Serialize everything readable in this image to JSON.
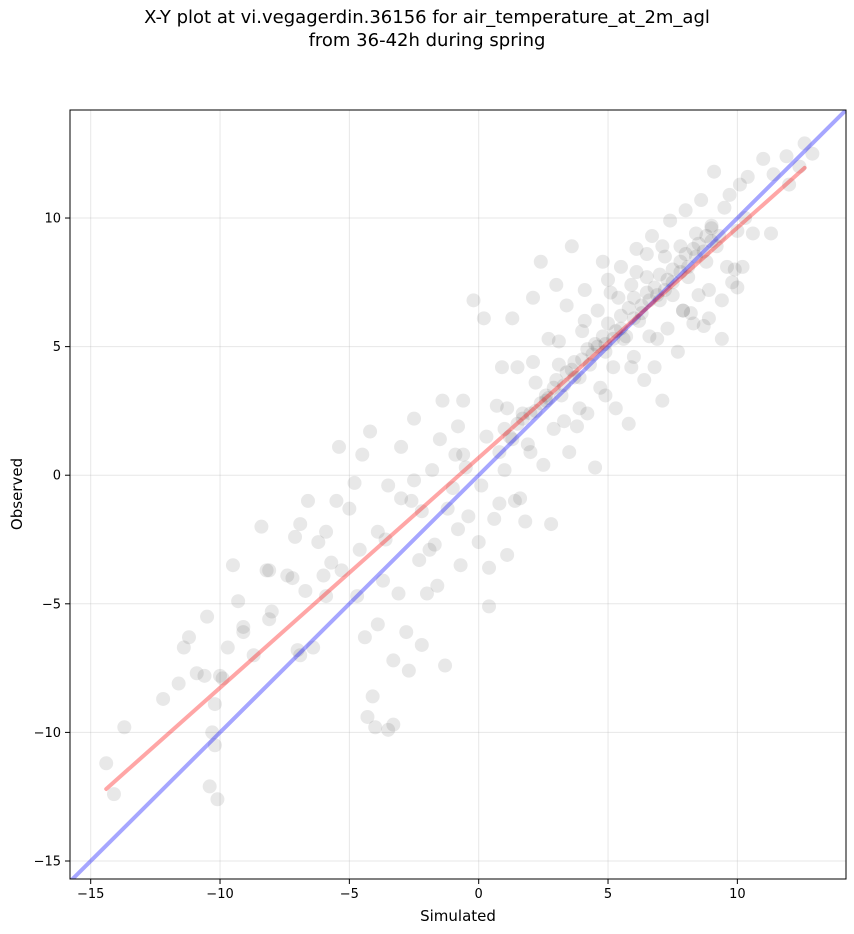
{
  "chart_data": {
    "type": "scatter",
    "title_lines": [
      "X-Y plot at vi.vegagerdin.36156 for air_temperature_at_2m_agl",
      "from 36-42h during spring"
    ],
    "xlabel": "Simulated",
    "ylabel": "Observed",
    "xlim": [
      -15.8,
      14.2
    ],
    "ylim": [
      -15.7,
      14.2
    ],
    "xticks": [
      -15,
      -10,
      -5,
      0,
      5,
      10
    ],
    "yticks": [
      -15,
      -10,
      -5,
      0,
      5,
      10
    ],
    "xtick_labels": [
      "−15",
      "−10",
      "−5",
      "0",
      "5",
      "10"
    ],
    "ytick_labels": [
      "−15",
      "−10",
      "−5",
      "0",
      "5",
      "10"
    ],
    "grid": true,
    "marker_color": "#000000",
    "marker_alpha": 0.09,
    "identity_line": {
      "x": [
        -15.8,
        14.2
      ],
      "y": [
        -15.8,
        14.2
      ],
      "color": "#0000ff"
    },
    "regression_line": {
      "x": [
        -14.4,
        12.6
      ],
      "y": [
        -12.2,
        11.95
      ],
      "color": "#ff0000"
    },
    "points": [
      [
        -14.4,
        -11.2
      ],
      [
        -14.1,
        -12.4
      ],
      [
        -13.7,
        -9.8
      ],
      [
        -12.2,
        -8.7
      ],
      [
        -11.6,
        -8.1
      ],
      [
        -11.2,
        -6.3
      ],
      [
        -11.4,
        -6.7
      ],
      [
        -10.9,
        -7.7
      ],
      [
        -10.6,
        -7.8
      ],
      [
        -10.5,
        -5.5
      ],
      [
        -10.4,
        -12.1
      ],
      [
        -10.2,
        -8.9
      ],
      [
        -10.1,
        -12.6
      ],
      [
        -10.2,
        -10.5
      ],
      [
        -10.3,
        -10.0
      ],
      [
        -9.9,
        -7.9
      ],
      [
        -10.0,
        -7.8
      ],
      [
        -9.7,
        -6.7
      ],
      [
        -9.5,
        -3.5
      ],
      [
        -9.3,
        -4.9
      ],
      [
        -9.1,
        -6.1
      ],
      [
        -9.1,
        -5.9
      ],
      [
        -8.7,
        -7.0
      ],
      [
        -8.4,
        -2.0
      ],
      [
        -8.2,
        -3.7
      ],
      [
        -8.0,
        -5.3
      ],
      [
        -8.1,
        -5.6
      ],
      [
        -7.2,
        -4.0
      ],
      [
        -7.1,
        -2.4
      ],
      [
        -6.9,
        -1.9
      ],
      [
        -7.0,
        -6.8
      ],
      [
        -6.9,
        -7.0
      ],
      [
        -6.7,
        -4.5
      ],
      [
        -6.4,
        -6.7
      ],
      [
        -6.2,
        -2.6
      ],
      [
        -6.0,
        -3.9
      ],
      [
        -5.9,
        -2.2
      ],
      [
        -5.7,
        -3.4
      ],
      [
        -5.5,
        -1.0
      ],
      [
        -5.4,
        1.1
      ],
      [
        -5.3,
        -3.7
      ],
      [
        -5.0,
        -1.3
      ],
      [
        -4.8,
        -0.3
      ],
      [
        -4.7,
        -4.7
      ],
      [
        -4.6,
        -2.9
      ],
      [
        -4.5,
        0.8
      ],
      [
        -4.4,
        -6.3
      ],
      [
        -4.3,
        -9.4
      ],
      [
        -4.1,
        -8.6
      ],
      [
        -4.0,
        -9.8
      ],
      [
        -4.2,
        1.7
      ],
      [
        -3.9,
        -5.8
      ],
      [
        -3.7,
        -4.1
      ],
      [
        -3.6,
        -2.5
      ],
      [
        -3.5,
        -0.4
      ],
      [
        -3.5,
        -9.9
      ],
      [
        -3.3,
        -9.7
      ],
      [
        -3.3,
        -7.2
      ],
      [
        -3.1,
        -4.6
      ],
      [
        -3.0,
        -0.9
      ],
      [
        -3.0,
        1.1
      ],
      [
        -2.8,
        -6.1
      ],
      [
        -2.7,
        -7.6
      ],
      [
        -2.5,
        -0.2
      ],
      [
        -2.5,
        2.2
      ],
      [
        -2.3,
        -3.3
      ],
      [
        -2.2,
        -1.4
      ],
      [
        -2.2,
        -6.6
      ],
      [
        -2.0,
        -4.6
      ],
      [
        -1.8,
        0.2
      ],
      [
        -1.7,
        -2.7
      ],
      [
        -1.6,
        -4.3
      ],
      [
        -1.5,
        1.4
      ],
      [
        -1.4,
        2.9
      ],
      [
        -1.2,
        -1.3
      ],
      [
        -1.3,
        -7.4
      ],
      [
        -1.0,
        -0.5
      ],
      [
        -0.9,
        0.8
      ],
      [
        -0.8,
        -2.1
      ],
      [
        -0.8,
        1.9
      ],
      [
        -0.7,
        -3.5
      ],
      [
        -0.6,
        2.9
      ],
      [
        -0.5,
        0.3
      ],
      [
        -0.4,
        -1.6
      ],
      [
        -0.2,
        6.8
      ],
      [
        0.0,
        -2.6
      ],
      [
        0.1,
        -0.4
      ],
      [
        0.2,
        6.1
      ],
      [
        0.3,
        1.5
      ],
      [
        0.4,
        -3.6
      ],
      [
        0.6,
        -1.7
      ],
      [
        0.7,
        2.7
      ],
      [
        0.8,
        -1.1
      ],
      [
        0.9,
        4.2
      ],
      [
        1.0,
        0.2
      ],
      [
        1.1,
        -3.1
      ],
      [
        1.2,
        1.5
      ],
      [
        1.3,
        6.1
      ],
      [
        1.4,
        -1.0
      ],
      [
        1.5,
        4.2
      ],
      [
        1.6,
        -0.9
      ],
      [
        1.7,
        2.4
      ],
      [
        1.8,
        -1.8
      ],
      [
        2.0,
        0.9
      ],
      [
        2.1,
        6.9
      ],
      [
        2.2,
        3.6
      ],
      [
        2.4,
        8.3
      ],
      [
        2.5,
        0.4
      ],
      [
        2.6,
        3.1
      ],
      [
        2.7,
        5.3
      ],
      [
        2.8,
        -1.9
      ],
      [
        2.9,
        1.8
      ],
      [
        3.0,
        7.4
      ],
      [
        3.1,
        4.3
      ],
      [
        3.3,
        2.1
      ],
      [
        3.4,
        6.6
      ],
      [
        3.5,
        0.9
      ],
      [
        3.6,
        8.9
      ],
      [
        3.7,
        3.8
      ],
      [
        3.8,
        1.9
      ],
      [
        4.0,
        5.6
      ],
      [
        4.1,
        7.2
      ],
      [
        4.2,
        2.4
      ],
      [
        4.4,
        4.7
      ],
      [
        4.5,
        0.3
      ],
      [
        4.6,
        6.4
      ],
      [
        4.7,
        3.4
      ],
      [
        4.8,
        8.3
      ],
      [
        4.9,
        5.1
      ],
      [
        5.0,
        7.6
      ],
      [
        5.2,
        4.2
      ],
      [
        5.3,
        2.6
      ],
      [
        5.4,
        6.9
      ],
      [
        5.5,
        8.1
      ],
      [
        5.6,
        5.3
      ],
      [
        5.8,
        2.0
      ],
      [
        5.9,
        7.4
      ],
      [
        6.0,
        4.6
      ],
      [
        6.1,
        8.8
      ],
      [
        6.2,
        6.0
      ],
      [
        6.4,
        3.7
      ],
      [
        6.5,
        7.7
      ],
      [
        6.6,
        5.4
      ],
      [
        6.7,
        9.3
      ],
      [
        6.8,
        4.2
      ],
      [
        7.0,
        6.8
      ],
      [
        7.1,
        2.9
      ],
      [
        7.2,
        8.5
      ],
      [
        7.3,
        5.7
      ],
      [
        7.4,
        9.9
      ],
      [
        7.5,
        7.0
      ],
      [
        7.7,
        4.8
      ],
      [
        7.8,
        8.9
      ],
      [
        7.9,
        6.4
      ],
      [
        8.0,
        10.3
      ],
      [
        8.1,
        7.7
      ],
      [
        8.3,
        5.9
      ],
      [
        8.4,
        9.4
      ],
      [
        8.5,
        7.0
      ],
      [
        8.6,
        10.7
      ],
      [
        8.8,
        8.3
      ],
      [
        8.9,
        6.1
      ],
      [
        9.0,
        9.7
      ],
      [
        9.1,
        11.8
      ],
      [
        9.2,
        8.9
      ],
      [
        9.4,
        5.3
      ],
      [
        9.5,
        10.4
      ],
      [
        9.6,
        8.1
      ],
      [
        9.7,
        10.9
      ],
      [
        9.8,
        7.5
      ],
      [
        10.0,
        9.5
      ],
      [
        10.1,
        11.3
      ],
      [
        10.2,
        8.1
      ],
      [
        10.3,
        10.0
      ],
      [
        10.4,
        11.6
      ],
      [
        10.6,
        9.4
      ],
      [
        11.0,
        12.3
      ],
      [
        11.3,
        9.4
      ],
      [
        11.4,
        11.7
      ],
      [
        11.9,
        12.4
      ],
      [
        12.0,
        11.3
      ],
      [
        12.4,
        12.0
      ],
      [
        12.6,
        12.9
      ],
      [
        12.9,
        12.5
      ],
      [
        10.0,
        7.3
      ],
      [
        9.9,
        8.0
      ],
      [
        9.4,
        6.8
      ],
      [
        8.7,
        5.8
      ],
      [
        8.2,
        6.3
      ],
      [
        6.5,
        8.6
      ],
      [
        -8.1,
        -3.7
      ],
      [
        -7.4,
        -3.9
      ],
      [
        -6.6,
        -1.0
      ],
      [
        -5.9,
        -4.7
      ],
      [
        -3.9,
        -2.2
      ],
      [
        -2.6,
        -1.0
      ],
      [
        -1.9,
        -2.9
      ],
      [
        -0.6,
        0.8
      ],
      [
        0.4,
        -5.1
      ],
      [
        0.8,
        0.9
      ],
      [
        1.1,
        2.6
      ],
      [
        1.5,
        2.0
      ],
      [
        1.9,
        1.2
      ],
      [
        2.2,
        2.5
      ],
      [
        2.6,
        2.9
      ],
      [
        2.9,
        3.4
      ],
      [
        3.2,
        3.1
      ],
      [
        3.4,
        4.0
      ],
      [
        3.7,
        4.4
      ],
      [
        3.9,
        3.8
      ],
      [
        4.2,
        4.9
      ],
      [
        4.5,
        5.1
      ],
      [
        4.8,
        5.4
      ],
      [
        5.0,
        5.9
      ],
      [
        5.3,
        5.6
      ],
      [
        5.5,
        6.2
      ],
      [
        5.8,
        6.5
      ],
      [
        6.0,
        6.9
      ],
      [
        6.3,
        6.6
      ],
      [
        6.5,
        7.1
      ],
      [
        6.8,
        7.3
      ],
      [
        7.0,
        7.8
      ],
      [
        7.3,
        7.6
      ],
      [
        7.5,
        8.0
      ],
      [
        7.8,
        8.3
      ],
      [
        8.0,
        8.6
      ],
      [
        8.3,
        8.8
      ],
      [
        8.5,
        9.0
      ],
      [
        8.8,
        9.3
      ],
      [
        9.0,
        9.6
      ],
      [
        1.0,
        1.8
      ],
      [
        1.3,
        1.4
      ],
      [
        1.7,
        2.2
      ],
      [
        2.0,
        2.4
      ],
      [
        2.4,
        2.8
      ],
      [
        2.7,
        3.0
      ],
      [
        3.0,
        3.7
      ],
      [
        3.3,
        3.5
      ],
      [
        3.6,
        4.1
      ],
      [
        4.0,
        4.5
      ],
      [
        4.3,
        4.3
      ],
      [
        4.6,
        5.0
      ],
      [
        4.9,
        4.8
      ],
      [
        5.2,
        5.3
      ],
      [
        5.5,
        5.7
      ],
      [
        5.7,
        5.4
      ],
      [
        6.0,
        6.1
      ],
      [
        6.3,
        6.3
      ],
      [
        6.6,
        6.8
      ],
      [
        6.9,
        7.0
      ],
      [
        7.2,
        7.2
      ],
      [
        7.5,
        7.5
      ],
      [
        7.8,
        7.9
      ],
      [
        8.1,
        8.1
      ],
      [
        8.4,
        8.5
      ],
      [
        8.7,
        8.7
      ],
      [
        9.0,
        9.1
      ],
      [
        9.3,
        9.3
      ],
      [
        6.1,
        7.9
      ],
      [
        7.1,
        8.9
      ],
      [
        5.1,
        7.1
      ],
      [
        4.1,
        6.0
      ],
      [
        3.1,
        5.2
      ],
      [
        2.1,
        4.4
      ],
      [
        6.9,
        5.3
      ],
      [
        5.9,
        4.2
      ],
      [
        4.9,
        3.1
      ],
      [
        3.9,
        2.6
      ],
      [
        7.9,
        6.4
      ],
      [
        8.9,
        7.2
      ]
    ]
  }
}
